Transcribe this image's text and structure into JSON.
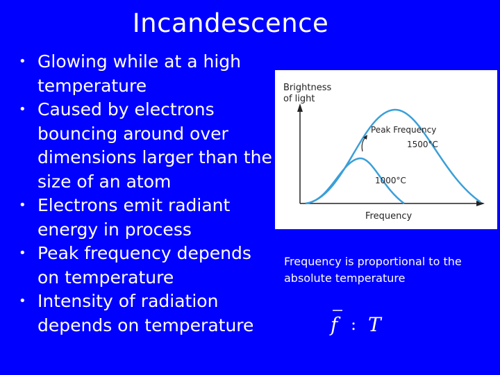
{
  "slide": {
    "title": "Incandescence",
    "bullets": [
      "Glowing while at a high temperature",
      "Caused by electrons bouncing around over dimensions larger than the size of an atom",
      "Electrons emit radiant energy in process",
      "Peak frequency depends on temperature",
      "Intensity of radiation depends on temperature"
    ],
    "bullet_glyph": "•",
    "note": "Frequency is proportional to the absolute temperature",
    "formula": {
      "left": "f",
      "relation": ":",
      "right": "T"
    }
  },
  "figure": {
    "ylabel_line1": "Brightness",
    "ylabel_line2": "of light",
    "xlabel": "Frequency",
    "annotation_line1": "Peak Frequency",
    "annotation_line2": "1500°C",
    "lower_curve_label": "1000°C",
    "curve_color": "#3a9fd8"
  },
  "colors": {
    "background": "#0000ff",
    "text": "#ffffff",
    "figure_background": "#ffffff"
  }
}
